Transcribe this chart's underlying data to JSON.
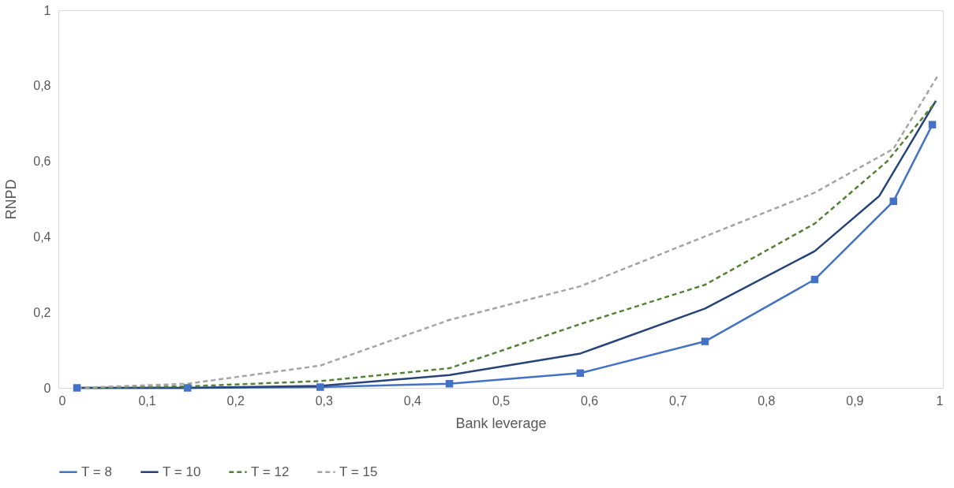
{
  "chart_data": {
    "type": "line",
    "xlabel": "Bank leverage",
    "ylabel": "RNPD",
    "xlim": [
      0,
      1
    ],
    "ylim": [
      0,
      1
    ],
    "xticks": [
      0,
      {
        "value": 0.1,
        "label": "0,1"
      },
      {
        "value": 0.2,
        "label": "0,2"
      },
      {
        "value": 0.3,
        "label": "0,3"
      },
      {
        "value": 0.4,
        "label": "0,4"
      },
      {
        "value": 0.5,
        "label": "0,5"
      },
      {
        "value": 0.6,
        "label": "0,6"
      },
      {
        "value": 0.7,
        "label": "0,7"
      },
      {
        "value": 0.8,
        "label": "0,8"
      },
      {
        "value": 0.9,
        "label": "0,9"
      },
      1
    ],
    "yticks": [
      0,
      {
        "value": 0.2,
        "label": "0,2"
      },
      {
        "value": 0.4,
        "label": "0,4"
      },
      {
        "value": 0.6,
        "label": "0,6"
      },
      {
        "value": 0.8,
        "label": "0,8"
      },
      1
    ],
    "grid": false,
    "legend": "bottom",
    "series": [
      {
        "name": "T = 8",
        "color": "#4472c4",
        "marker": "square",
        "line_style": "solid",
        "x": [
          0.021,
          0.146,
          0.296,
          0.442,
          0.59,
          0.731,
          0.855,
          0.944,
          0.988
        ],
        "values": [
          0,
          0,
          0.002,
          0.011,
          0.039,
          0.123,
          0.287,
          0.494,
          0.697
        ]
      },
      {
        "name": "T = 10",
        "color": "#264478",
        "marker": "none",
        "line_style": "solid",
        "x": [
          0.021,
          0.146,
          0.296,
          0.442,
          0.59,
          0.731,
          0.855,
          0.928,
          0.992
        ],
        "values": [
          0,
          0,
          0.005,
          0.034,
          0.091,
          0.21,
          0.362,
          0.508,
          0.76
        ]
      },
      {
        "name": "T = 12",
        "color": "#548235",
        "marker": "none",
        "line_style": "dashed",
        "x": [
          0.021,
          0.146,
          0.296,
          0.442,
          0.59,
          0.731,
          0.855,
          0.937,
          0.992
        ],
        "values": [
          0,
          0.004,
          0.018,
          0.052,
          0.169,
          0.273,
          0.435,
          0.6,
          0.758
        ]
      },
      {
        "name": "T = 15",
        "color": "#a5a5a5",
        "marker": "none",
        "line_style": "dashed",
        "x": [
          0.021,
          0.146,
          0.296,
          0.442,
          0.59,
          0.731,
          0.855,
          0.944,
          0.995
        ],
        "values": [
          0,
          0.011,
          0.059,
          0.18,
          0.269,
          0.401,
          0.517,
          0.633,
          0.83
        ]
      }
    ]
  }
}
